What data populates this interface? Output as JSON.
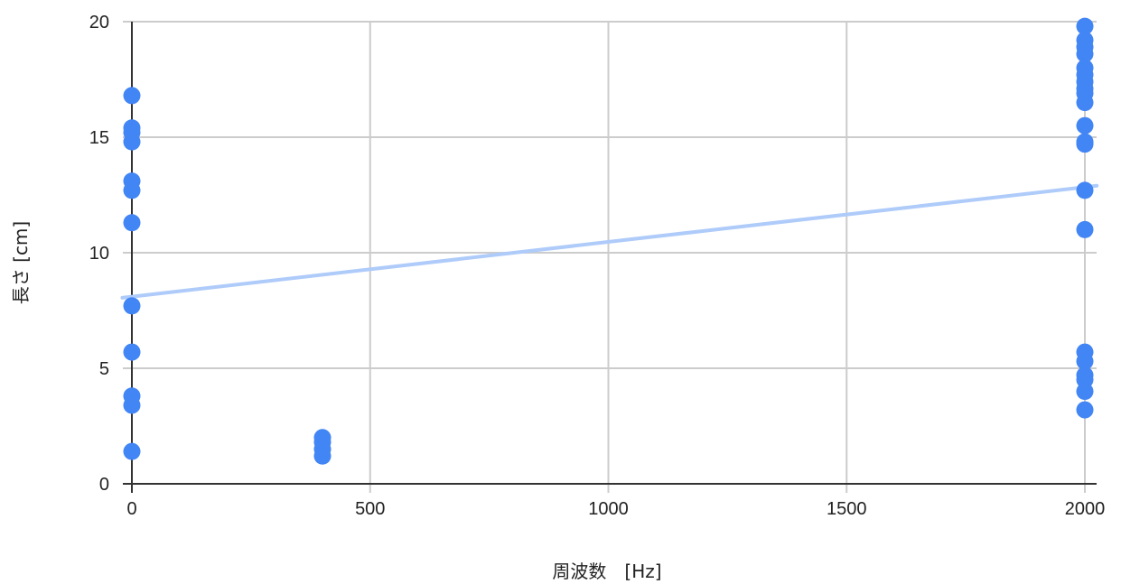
{
  "chart_data": {
    "type": "scatter",
    "title": "",
    "xlabel": "周波数　[Hz]",
    "ylabel": "長さ [cm]",
    "xlim": [
      0,
      2000
    ],
    "ylim": [
      0,
      20
    ],
    "x_ticks": [
      0,
      500,
      1000,
      1500,
      2000
    ],
    "y_ticks": [
      0,
      5,
      10,
      15,
      20
    ],
    "grid": true,
    "legend": "none",
    "series": [
      {
        "color": "#4285f4",
        "points": [
          {
            "x": 0,
            "y": 16.8
          },
          {
            "x": 0,
            "y": 15.4
          },
          {
            "x": 0,
            "y": 15.2
          },
          {
            "x": 0,
            "y": 14.8
          },
          {
            "x": 0,
            "y": 13.1
          },
          {
            "x": 0,
            "y": 12.7
          },
          {
            "x": 0,
            "y": 11.3
          },
          {
            "x": 0,
            "y": 7.7
          },
          {
            "x": 0,
            "y": 5.7
          },
          {
            "x": 0,
            "y": 3.8
          },
          {
            "x": 0,
            "y": 3.4
          },
          {
            "x": 0,
            "y": 1.4
          },
          {
            "x": 400,
            "y": 2.0
          },
          {
            "x": 400,
            "y": 1.8
          },
          {
            "x": 400,
            "y": 1.5
          },
          {
            "x": 400,
            "y": 1.2
          },
          {
            "x": 2000,
            "y": 19.8
          },
          {
            "x": 2000,
            "y": 19.2
          },
          {
            "x": 2000,
            "y": 18.9
          },
          {
            "x": 2000,
            "y": 18.6
          },
          {
            "x": 2000,
            "y": 18.0
          },
          {
            "x": 2000,
            "y": 17.7
          },
          {
            "x": 2000,
            "y": 17.4
          },
          {
            "x": 2000,
            "y": 17.1
          },
          {
            "x": 2000,
            "y": 16.9
          },
          {
            "x": 2000,
            "y": 16.5
          },
          {
            "x": 2000,
            "y": 15.5
          },
          {
            "x": 2000,
            "y": 14.8
          },
          {
            "x": 2000,
            "y": 14.7
          },
          {
            "x": 2000,
            "y": 12.7
          },
          {
            "x": 2000,
            "y": 11.0
          },
          {
            "x": 2000,
            "y": 5.7
          },
          {
            "x": 2000,
            "y": 5.3
          },
          {
            "x": 2000,
            "y": 4.7
          },
          {
            "x": 2000,
            "y": 4.5
          },
          {
            "x": 2000,
            "y": 4.0
          },
          {
            "x": 2000,
            "y": 3.2
          }
        ]
      }
    ],
    "trendline": {
      "type": "linear",
      "color": "#aecbfa",
      "points": [
        {
          "x": -20,
          "y": 8.05
        },
        {
          "x": 2025,
          "y": 12.9
        }
      ]
    }
  }
}
